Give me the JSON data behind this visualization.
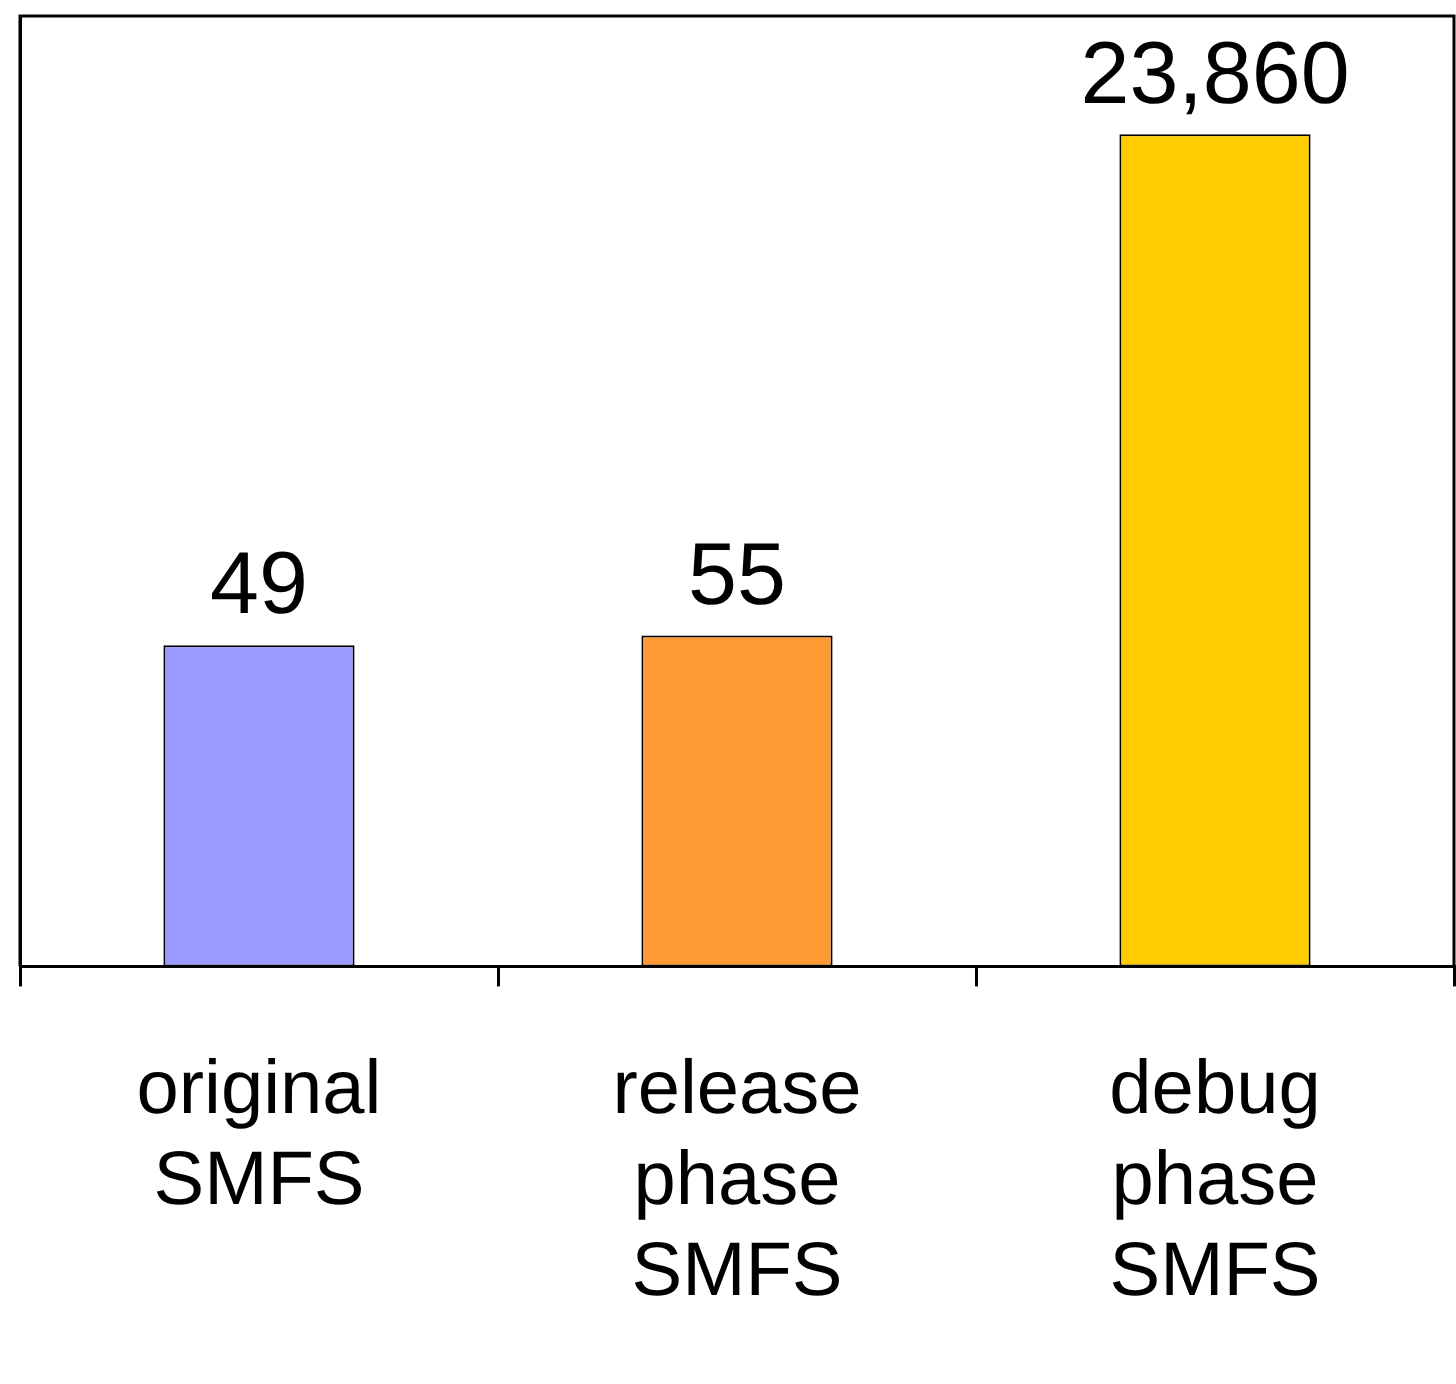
{
  "chart_data": {
    "type": "bar",
    "categories": [
      "original SMFS",
      "release phase SMFS",
      "debug phase SMFS"
    ],
    "values": [
      49,
      55,
      23860
    ],
    "colors": [
      "#9999ff",
      "#ff9933",
      "#ffcc00"
    ],
    "value_labels": [
      "49",
      "55",
      "23,860"
    ],
    "log": true,
    "ylim": [
      1,
      100000
    ],
    "grid": false,
    "legend": false
  }
}
